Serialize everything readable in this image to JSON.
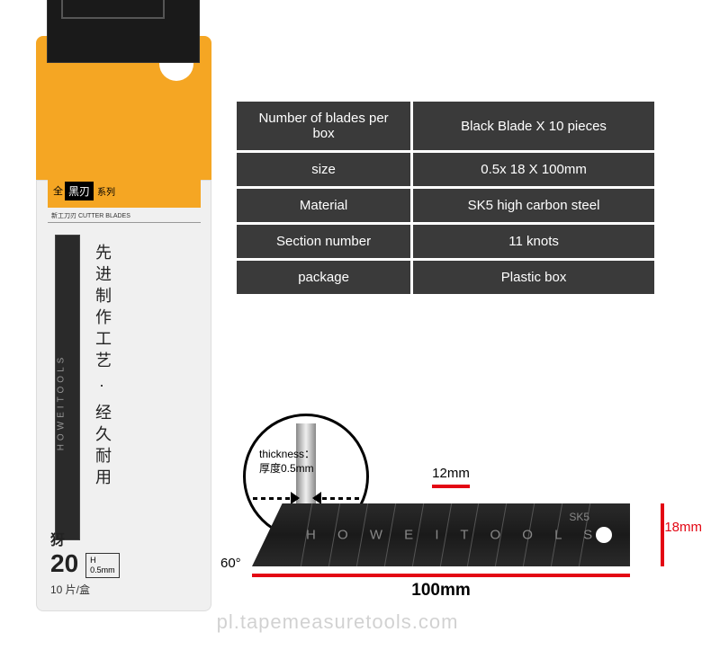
{
  "package": {
    "series_prefix": "全",
    "series_black": "黑刃",
    "series_suffix": "系列",
    "cutter_label": "新工刀刃 CUTTER BLADES",
    "blade_brand": "HOWEITOOLS",
    "cn_text": "先进制作工艺 · 经久耐用",
    "model_chr": "犽",
    "model_num": "20",
    "spec_h": "H",
    "spec_mm": "0.5mm",
    "qty": "10 片/盒"
  },
  "specs": [
    {
      "label": "Number of blades per box",
      "value": "Black Blade X 10 pieces"
    },
    {
      "label": "size",
      "value": "0.5x 18 X 100mm"
    },
    {
      "label": "Material",
      "value": "SK5 high carbon steel"
    },
    {
      "label": "Section number",
      "value": "11 knots"
    },
    {
      "label": "package",
      "value": "Plastic box"
    }
  ],
  "thickness": {
    "label_en": "thickness：",
    "label_cn": "厚度0.5mm"
  },
  "blade": {
    "brand": "H O W E I T O O L S",
    "sk5": "SK5",
    "dim_12": "12mm",
    "dim_18": "18mm",
    "dim_60": "60°",
    "dim_100": "100mm",
    "segments": 11
  },
  "watermark": "pl.tapemeasuretools.com",
  "colors": {
    "accent": "#f5a623",
    "table_bg": "#3a3a3a",
    "red": "#e30613"
  }
}
